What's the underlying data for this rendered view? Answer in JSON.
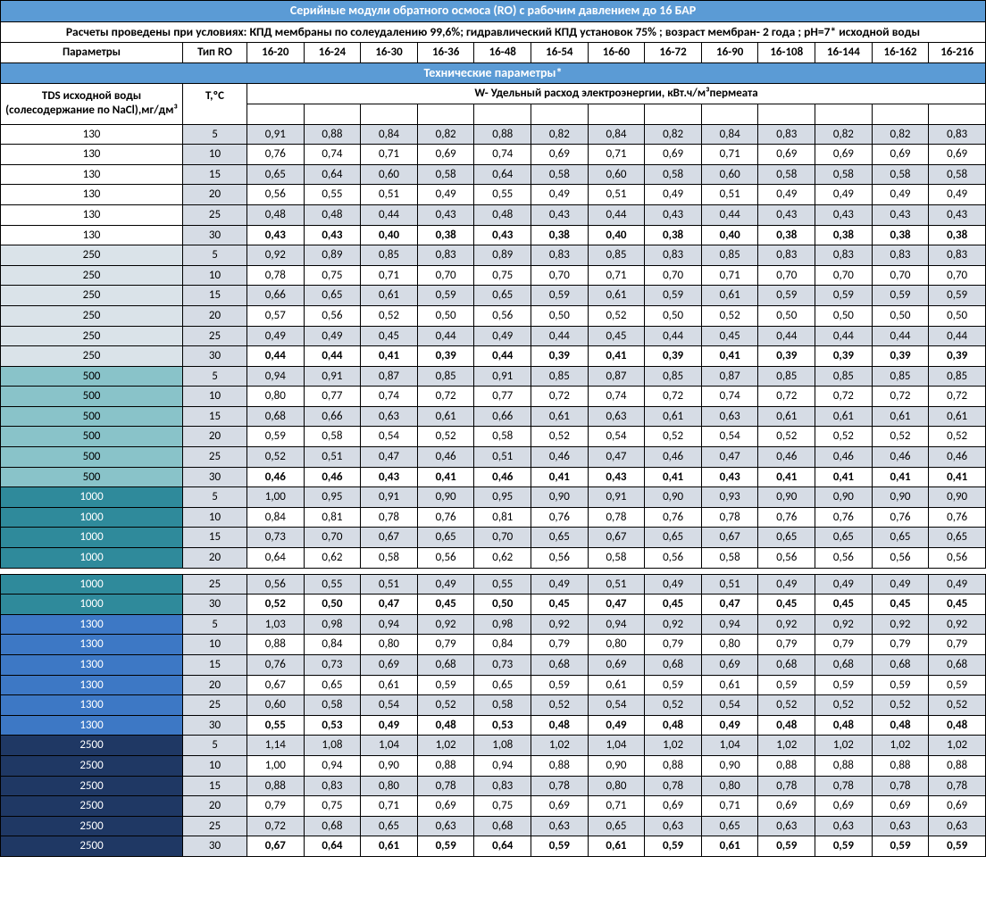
{
  "title": "Серийные модули обратного осмоса (RO) с рабочим давлением до 16 БАР",
  "subtitle": "Расчеты проведены при условиях: КПД мембраны по солеудалению 99,6%; гидравлический КПД установок 75% ; возраст мембран- 2 года ; pH=7* исходной воды",
  "col_params": "Параметры",
  "col_type": "Тип RO",
  "ro_types": [
    "16-20",
    "16-24",
    "16-30",
    "16-36",
    "16-48",
    "16-54",
    "16-60",
    "16-72",
    "16-90",
    "16-108",
    "16-144",
    "16-162",
    "16-216"
  ],
  "section_tech": "Технические параметры*",
  "tds_header": "TDS исходной воды (солесодержание по NaCl),мг/дм³",
  "temp_header": "T,ºС",
  "w_header": "W- Удельный расход электроэнергии, кВт.ч/м³пермеата",
  "groups": [
    {
      "tds": "130",
      "color": "#ffffff",
      "rows": [
        {
          "t": "5",
          "v": [
            "0,91",
            "0,88",
            "0,84",
            "0,82",
            "0,88",
            "0,82",
            "0,84",
            "0,82",
            "0,84",
            "0,83",
            "0,82",
            "0,82",
            "0,83"
          ]
        },
        {
          "t": "10",
          "v": [
            "0,76",
            "0,74",
            "0,71",
            "0,69",
            "0,74",
            "0,69",
            "0,71",
            "0,69",
            "0,71",
            "0,69",
            "0,69",
            "0,69",
            "0,69"
          ]
        },
        {
          "t": "15",
          "v": [
            "0,65",
            "0,64",
            "0,60",
            "0,58",
            "0,64",
            "0,58",
            "0,60",
            "0,58",
            "0,60",
            "0,58",
            "0,58",
            "0,58",
            "0,58"
          ]
        },
        {
          "t": "20",
          "v": [
            "0,56",
            "0,55",
            "0,51",
            "0,49",
            "0,55",
            "0,49",
            "0,51",
            "0,49",
            "0,51",
            "0,49",
            "0,49",
            "0,49",
            "0,49"
          ]
        },
        {
          "t": "25",
          "v": [
            "0,48",
            "0,48",
            "0,44",
            "0,43",
            "0,48",
            "0,43",
            "0,44",
            "0,43",
            "0,44",
            "0,43",
            "0,43",
            "0,43",
            "0,43"
          ]
        },
        {
          "t": "30",
          "v": [
            "0,43",
            "0,43",
            "0,40",
            "0,38",
            "0,43",
            "0,38",
            "0,40",
            "0,38",
            "0,40",
            "0,38",
            "0,38",
            "0,38",
            "0,38"
          ],
          "bold": true
        }
      ]
    },
    {
      "tds": "250",
      "color": "#dae3e9",
      "text": "#000",
      "rows": [
        {
          "t": "5",
          "v": [
            "0,92",
            "0,89",
            "0,85",
            "0,83",
            "0,89",
            "0,83",
            "0,85",
            "0,83",
            "0,85",
            "0,83",
            "0,83",
            "0,83",
            "0,83"
          ]
        },
        {
          "t": "10",
          "v": [
            "0,78",
            "0,75",
            "0,71",
            "0,70",
            "0,75",
            "0,70",
            "0,71",
            "0,70",
            "0,71",
            "0,70",
            "0,70",
            "0,70",
            "0,70"
          ]
        },
        {
          "t": "15",
          "v": [
            "0,66",
            "0,65",
            "0,61",
            "0,59",
            "0,65",
            "0,59",
            "0,61",
            "0,59",
            "0,61",
            "0,59",
            "0,59",
            "0,59",
            "0,59"
          ]
        },
        {
          "t": "20",
          "v": [
            "0,57",
            "0,56",
            "0,52",
            "0,50",
            "0,56",
            "0,50",
            "0,52",
            "0,50",
            "0,52",
            "0,50",
            "0,50",
            "0,50",
            "0,50"
          ]
        },
        {
          "t": "25",
          "v": [
            "0,49",
            "0,49",
            "0,45",
            "0,44",
            "0,49",
            "0,44",
            "0,45",
            "0,44",
            "0,45",
            "0,44",
            "0,44",
            "0,44",
            "0,44"
          ]
        },
        {
          "t": "30",
          "v": [
            "0,44",
            "0,44",
            "0,41",
            "0,39",
            "0,44",
            "0,39",
            "0,41",
            "0,39",
            "0,41",
            "0,39",
            "0,39",
            "0,39",
            "0,39"
          ],
          "bold": true
        }
      ]
    },
    {
      "tds": "500",
      "color": "#89c3c9",
      "text": "#000",
      "rows": [
        {
          "t": "5",
          "v": [
            "0,94",
            "0,91",
            "0,87",
            "0,85",
            "0,91",
            "0,85",
            "0,87",
            "0,85",
            "0,87",
            "0,85",
            "0,85",
            "0,85",
            "0,85"
          ]
        },
        {
          "t": "10",
          "v": [
            "0,80",
            "0,77",
            "0,74",
            "0,72",
            "0,77",
            "0,72",
            "0,74",
            "0,72",
            "0,74",
            "0,72",
            "0,72",
            "0,72",
            "0,72"
          ]
        },
        {
          "t": "15",
          "v": [
            "0,68",
            "0,66",
            "0,63",
            "0,61",
            "0,66",
            "0,61",
            "0,63",
            "0,61",
            "0,63",
            "0,61",
            "0,61",
            "0,61",
            "0,61"
          ]
        },
        {
          "t": "20",
          "v": [
            "0,59",
            "0,58",
            "0,54",
            "0,52",
            "0,58",
            "0,52",
            "0,54",
            "0,52",
            "0,54",
            "0,52",
            "0,52",
            "0,52",
            "0,52"
          ]
        },
        {
          "t": "25",
          "v": [
            "0,52",
            "0,51",
            "0,47",
            "0,46",
            "0,51",
            "0,46",
            "0,47",
            "0,46",
            "0,47",
            "0,46",
            "0,46",
            "0,46",
            "0,46"
          ]
        },
        {
          "t": "30",
          "v": [
            "0,46",
            "0,46",
            "0,43",
            "0,41",
            "0,46",
            "0,41",
            "0,43",
            "0,41",
            "0,43",
            "0,41",
            "0,41",
            "0,41",
            "0,41"
          ],
          "bold": true
        }
      ]
    },
    {
      "tds": "1000",
      "color": "#2f8a9b",
      "text": "#fff",
      "rows": [
        {
          "t": "5",
          "v": [
            "1,00",
            "0,95",
            "0,91",
            "0,90",
            "0,95",
            "0,90",
            "0,91",
            "0,90",
            "0,93",
            "0,90",
            "0,90",
            "0,90",
            "0,90"
          ]
        },
        {
          "t": "10",
          "v": [
            "0,84",
            "0,81",
            "0,78",
            "0,76",
            "0,81",
            "0,76",
            "0,78",
            "0,76",
            "0,78",
            "0,76",
            "0,76",
            "0,76",
            "0,76"
          ]
        },
        {
          "t": "15",
          "v": [
            "0,73",
            "0,70",
            "0,67",
            "0,65",
            "0,70",
            "0,65",
            "0,67",
            "0,65",
            "0,67",
            "0,65",
            "0,65",
            "0,65",
            "0,65"
          ]
        },
        {
          "t": "20",
          "v": [
            "0,64",
            "0,62",
            "0,58",
            "0,56",
            "0,62",
            "0,56",
            "0,58",
            "0,56",
            "0,58",
            "0,56",
            "0,56",
            "0,56",
            "0,56"
          ]
        }
      ]
    },
    {
      "tds": "1000",
      "color": "#2f8a9b",
      "text": "#fff",
      "gapBefore": true,
      "rows": [
        {
          "t": "25",
          "v": [
            "0,56",
            "0,55",
            "0,51",
            "0,49",
            "0,55",
            "0,49",
            "0,51",
            "0,49",
            "0,51",
            "0,49",
            "0,49",
            "0,49",
            "0,49"
          ]
        },
        {
          "t": "30",
          "v": [
            "0,52",
            "0,50",
            "0,47",
            "0,45",
            "0,50",
            "0,45",
            "0,47",
            "0,45",
            "0,47",
            "0,45",
            "0,45",
            "0,45",
            "0,45"
          ],
          "bold": true
        }
      ]
    },
    {
      "tds": "1300",
      "color": "#3d78c5",
      "text": "#fff",
      "rows": [
        {
          "t": "5",
          "v": [
            "1,03",
            "0,98",
            "0,94",
            "0,92",
            "0,98",
            "0,92",
            "0,94",
            "0,92",
            "0,94",
            "0,92",
            "0,92",
            "0,92",
            "0,92"
          ]
        },
        {
          "t": "10",
          "v": [
            "0,88",
            "0,84",
            "0,80",
            "0,79",
            "0,84",
            "0,79",
            "0,80",
            "0,79",
            "0,80",
            "0,79",
            "0,79",
            "0,79",
            "0,79"
          ]
        },
        {
          "t": "15",
          "v": [
            "0,76",
            "0,73",
            "0,69",
            "0,68",
            "0,73",
            "0,68",
            "0,69",
            "0,68",
            "0,69",
            "0,68",
            "0,68",
            "0,68",
            "0,68"
          ]
        },
        {
          "t": "20",
          "v": [
            "0,67",
            "0,65",
            "0,61",
            "0,59",
            "0,65",
            "0,59",
            "0,61",
            "0,59",
            "0,61",
            "0,59",
            "0,59",
            "0,59",
            "0,59"
          ]
        },
        {
          "t": "25",
          "v": [
            "0,60",
            "0,58",
            "0,54",
            "0,52",
            "0,58",
            "0,52",
            "0,54",
            "0,52",
            "0,54",
            "0,52",
            "0,52",
            "0,52",
            "0,52"
          ]
        },
        {
          "t": "30",
          "v": [
            "0,55",
            "0,53",
            "0,49",
            "0,48",
            "0,53",
            "0,48",
            "0,49",
            "0,48",
            "0,49",
            "0,48",
            "0,48",
            "0,48",
            "0,48"
          ],
          "bold": true
        }
      ]
    },
    {
      "tds": "2500",
      "color": "#1f3864",
      "text": "#fff",
      "rows": [
        {
          "t": "5",
          "v": [
            "1,14",
            "1,08",
            "1,04",
            "1,02",
            "1,08",
            "1,02",
            "1,04",
            "1,02",
            "1,04",
            "1,02",
            "1,02",
            "1,02",
            "1,02"
          ]
        },
        {
          "t": "10",
          "v": [
            "1,00",
            "0,94",
            "0,90",
            "0,88",
            "0,94",
            "0,88",
            "0,90",
            "0,88",
            "0,90",
            "0,88",
            "0,88",
            "0,88",
            "0,88"
          ]
        },
        {
          "t": "15",
          "v": [
            "0,88",
            "0,83",
            "0,80",
            "0,78",
            "0,83",
            "0,78",
            "0,80",
            "0,78",
            "0,80",
            "0,78",
            "0,78",
            "0,78",
            "0,78"
          ]
        },
        {
          "t": "20",
          "v": [
            "0,79",
            "0,75",
            "0,71",
            "0,69",
            "0,75",
            "0,69",
            "0,71",
            "0,69",
            "0,71",
            "0,69",
            "0,69",
            "0,69",
            "0,69"
          ]
        },
        {
          "t": "25",
          "v": [
            "0,72",
            "0,68",
            "0,65",
            "0,63",
            "0,68",
            "0,63",
            "0,65",
            "0,63",
            "0,65",
            "0,63",
            "0,63",
            "0,63",
            "0,63"
          ]
        },
        {
          "t": "30",
          "v": [
            "0,67",
            "0,64",
            "0,61",
            "0,59",
            "0,64",
            "0,59",
            "0,61",
            "0,59",
            "0,61",
            "0,59",
            "0,59",
            "0,59",
            "0,59"
          ],
          "bold": true
        }
      ]
    }
  ],
  "col_widths": {
    "tds": 204,
    "type": 72,
    "val": 64
  }
}
